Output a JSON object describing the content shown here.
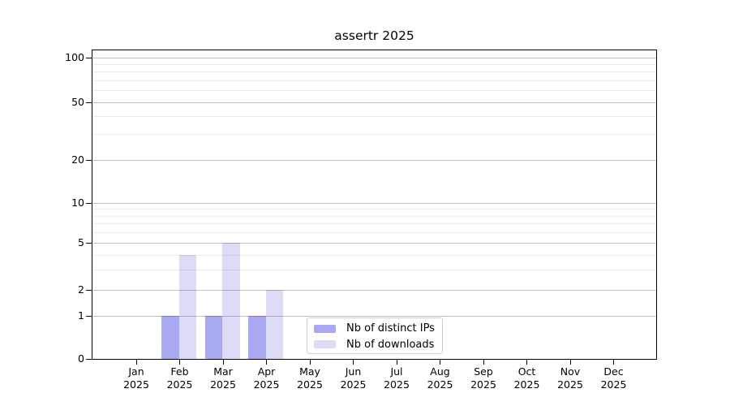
{
  "chart_data": {
    "type": "bar",
    "title": "assertr 2025",
    "categories": [
      "Jan\n2025",
      "Feb\n2025",
      "Mar\n2025",
      "Apr\n2025",
      "May\n2025",
      "Jun\n2025",
      "Jul\n2025",
      "Aug\n2025",
      "Sep\n2025",
      "Oct\n2025",
      "Nov\n2025",
      "Dec\n2025"
    ],
    "series": [
      {
        "name": "Nb of distinct IPs",
        "color": "#a9a9f1",
        "values": [
          0,
          1,
          1,
          1,
          0,
          0,
          0,
          0,
          0,
          0,
          0,
          0
        ]
      },
      {
        "name": "Nb of downloads",
        "color": "#dcdcf8",
        "values": [
          0,
          4,
          5,
          2,
          0,
          0,
          0,
          0,
          0,
          0,
          0,
          0
        ]
      }
    ],
    "xlabel": "",
    "ylabel": "",
    "ylim": [
      0,
      100
    ],
    "y_scale": "log1p",
    "y_ticks": [
      0,
      1,
      2,
      5,
      10,
      20,
      50,
      100
    ],
    "y_minor_gridlines": [
      3,
      4,
      6,
      7,
      8,
      9,
      30,
      40,
      60,
      70,
      80,
      90
    ],
    "grid": "horizontal",
    "legend_position": "inside-bottom-center"
  },
  "colors": {
    "axis": "#000000",
    "major_grid": "rgba(0,0,0,0.24)",
    "minor_grid": "rgba(0,0,0,0.08)",
    "legend_border": "#d0d0d0",
    "background": "#ffffff",
    "text": "#000000"
  }
}
